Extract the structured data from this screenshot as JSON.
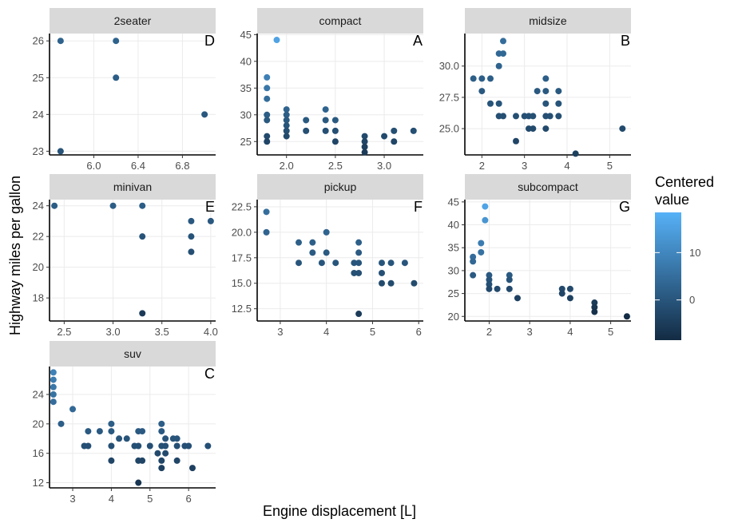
{
  "chart_data": {
    "type": "scatter",
    "xlabel": "Engine displacement [L]",
    "ylabel": "Highway miles per gallon",
    "legend": {
      "title_lines": [
        "Centered",
        "value"
      ],
      "ticks": [
        10,
        0
      ],
      "range": [
        -8.5,
        18.5
      ],
      "colors": [
        "#132B43",
        "#56B1F7"
      ]
    },
    "panels": [
      {
        "strip": "2seater",
        "label": "D",
        "xlim": [
          5.6,
          7.1
        ],
        "ylim": [
          22.9,
          26.2
        ],
        "xticks": [
          6.0,
          6.4,
          6.8
        ],
        "xtick_labels": [
          "6.0",
          "6.4",
          "6.8"
        ],
        "yticks": [
          23,
          24,
          25,
          26
        ],
        "ytick_labels": [
          "23",
          "24",
          "25",
          "26"
        ],
        "points": [
          [
            5.7,
            26,
            2.5
          ],
          [
            5.7,
            23,
            -0.5
          ],
          [
            6.2,
            26,
            2.5
          ],
          [
            6.2,
            25,
            1.5
          ],
          [
            7.0,
            24,
            0.5
          ]
        ]
      },
      {
        "strip": "compact",
        "label": "A",
        "xlim": [
          1.7,
          3.4
        ],
        "ylim": [
          22.5,
          45.2
        ],
        "xticks": [
          2.0,
          2.5,
          3.0
        ],
        "xtick_labels": [
          "2.0",
          "2.5",
          "3.0"
        ],
        "yticks": [
          25,
          30,
          35,
          40,
          45
        ],
        "ytick_labels": [
          "25",
          "30",
          "35",
          "40",
          "45"
        ],
        "points": [
          [
            1.8,
            37,
            8.7
          ],
          [
            1.8,
            35,
            6.7
          ],
          [
            1.8,
            33,
            4.7
          ],
          [
            1.8,
            30,
            1.7
          ],
          [
            1.8,
            29,
            0.7
          ],
          [
            1.8,
            26,
            -2.3
          ],
          [
            1.8,
            25,
            -3.3
          ],
          [
            1.9,
            44,
            15.7
          ],
          [
            2.0,
            31,
            2.7
          ],
          [
            2.0,
            30,
            1.7
          ],
          [
            2.0,
            29,
            0.7
          ],
          [
            2.0,
            28,
            -0.3
          ],
          [
            2.0,
            27,
            -1.3
          ],
          [
            2.0,
            26,
            -2.3
          ],
          [
            2.2,
            29,
            0.7
          ],
          [
            2.2,
            27,
            -1.3
          ],
          [
            2.4,
            31,
            2.7
          ],
          [
            2.4,
            29,
            0.7
          ],
          [
            2.4,
            27,
            -1.3
          ],
          [
            2.5,
            29,
            0.7
          ],
          [
            2.5,
            27,
            -1.3
          ],
          [
            2.5,
            25,
            -3.3
          ],
          [
            2.8,
            26,
            -2.3
          ],
          [
            2.8,
            25,
            -3.3
          ],
          [
            2.8,
            24,
            -4.3
          ],
          [
            2.8,
            23,
            -5.3
          ],
          [
            3.0,
            26,
            -2.3
          ],
          [
            3.1,
            27,
            -1.3
          ],
          [
            3.1,
            25,
            -3.3
          ],
          [
            3.3,
            27,
            -1.3
          ]
        ]
      },
      {
        "strip": "midsize",
        "label": "B",
        "xlim": [
          1.6,
          5.5
        ],
        "ylim": [
          22.9,
          32.6
        ],
        "xticks": [
          2,
          3,
          4,
          5
        ],
        "xtick_labels": [
          "2",
          "3",
          "4",
          "5"
        ],
        "yticks": [
          25.0,
          27.5,
          30.0
        ],
        "ytick_labels": [
          "25.0",
          "27.5",
          "30.0"
        ],
        "points": [
          [
            1.8,
            29,
            1.7
          ],
          [
            2.0,
            29,
            1.7
          ],
          [
            2.0,
            28,
            0.7
          ],
          [
            2.2,
            29,
            1.7
          ],
          [
            2.2,
            27,
            -0.3
          ],
          [
            2.4,
            31,
            3.7
          ],
          [
            2.4,
            30,
            2.7
          ],
          [
            2.4,
            27,
            -0.3
          ],
          [
            2.4,
            26,
            -1.3
          ],
          [
            2.5,
            32,
            4.7
          ],
          [
            2.5,
            31,
            3.7
          ],
          [
            2.5,
            26,
            -1.3
          ],
          [
            2.8,
            26,
            -1.3
          ],
          [
            2.8,
            24,
            -3.3
          ],
          [
            3.0,
            26,
            -1.3
          ],
          [
            3.1,
            26,
            -1.3
          ],
          [
            3.1,
            25,
            -2.3
          ],
          [
            3.2,
            26,
            -1.3
          ],
          [
            3.2,
            25,
            -2.3
          ],
          [
            3.3,
            28,
            0.7
          ],
          [
            3.5,
            29,
            1.7
          ],
          [
            3.5,
            28,
            0.7
          ],
          [
            3.5,
            27,
            -0.3
          ],
          [
            3.5,
            26,
            -1.3
          ],
          [
            3.5,
            25,
            -2.3
          ],
          [
            3.6,
            26,
            -1.3
          ],
          [
            3.8,
            28,
            0.7
          ],
          [
            3.8,
            27,
            -0.3
          ],
          [
            3.8,
            26,
            -1.3
          ],
          [
            4.2,
            23,
            -4.3
          ],
          [
            5.3,
            25,
            -2.3
          ]
        ]
      },
      {
        "strip": "minivan",
        "label": "E",
        "xlim": [
          2.35,
          4.05
        ],
        "ylim": [
          16.5,
          24.4
        ],
        "xticks": [
          2.5,
          3.0,
          3.5,
          4.0
        ],
        "xtick_labels": [
          "2.5",
          "3.0",
          "3.5",
          "4.0"
        ],
        "yticks": [
          18,
          20,
          22,
          24
        ],
        "ytick_labels": [
          "18",
          "20",
          "22",
          "24"
        ],
        "points": [
          [
            2.4,
            24,
            1.6
          ],
          [
            3.0,
            24,
            1.6
          ],
          [
            3.3,
            24,
            1.6
          ],
          [
            3.3,
            22,
            -0.4
          ],
          [
            3.3,
            17,
            -5.4
          ],
          [
            3.8,
            23,
            0.6
          ],
          [
            3.8,
            22,
            -0.4
          ],
          [
            3.8,
            21,
            -1.4
          ],
          [
            4.0,
            23,
            0.6
          ]
        ]
      },
      {
        "strip": "pickup",
        "label": "F",
        "xlim": [
          2.5,
          6.1
        ],
        "ylim": [
          11.3,
          23.2
        ],
        "xticks": [
          3,
          4,
          5,
          6
        ],
        "xtick_labels": [
          "3",
          "4",
          "5",
          "6"
        ],
        "yticks": [
          12.5,
          15.0,
          17.5,
          20.0,
          22.5
        ],
        "ytick_labels": [
          "12.5",
          "15.0",
          "17.5",
          "20.0",
          "22.5"
        ],
        "points": [
          [
            2.7,
            22,
            5.0
          ],
          [
            2.7,
            20,
            3.0
          ],
          [
            3.4,
            19,
            2.0
          ],
          [
            3.4,
            17,
            0.0
          ],
          [
            3.7,
            19,
            2.0
          ],
          [
            3.7,
            18,
            1.0
          ],
          [
            3.9,
            17,
            0.0
          ],
          [
            4.0,
            20,
            3.0
          ],
          [
            4.0,
            18,
            1.0
          ],
          [
            4.2,
            17,
            0.0
          ],
          [
            4.6,
            17,
            0.0
          ],
          [
            4.6,
            16,
            -1.0
          ],
          [
            4.7,
            19,
            2.0
          ],
          [
            4.7,
            18,
            1.0
          ],
          [
            4.7,
            17,
            0.0
          ],
          [
            4.7,
            16,
            -1.0
          ],
          [
            4.7,
            12,
            -5.0
          ],
          [
            5.2,
            17,
            0.0
          ],
          [
            5.2,
            16,
            -1.0
          ],
          [
            5.2,
            15,
            -2.0
          ],
          [
            5.4,
            17,
            0.0
          ],
          [
            5.4,
            15,
            -2.0
          ],
          [
            5.7,
            17,
            0.0
          ],
          [
            5.9,
            15,
            -2.0
          ]
        ]
      },
      {
        "strip": "subcompact",
        "label": "G",
        "xlim": [
          1.4,
          5.5
        ],
        "ylim": [
          19.0,
          45.5
        ],
        "xticks": [
          2,
          3,
          4,
          5
        ],
        "xtick_labels": [
          "2",
          "3",
          "4",
          "5"
        ],
        "yticks": [
          20,
          25,
          30,
          35,
          40,
          45
        ],
        "ytick_labels": [
          "20",
          "25",
          "30",
          "35",
          "40",
          "45"
        ],
        "points": [
          [
            1.6,
            33,
            4.8
          ],
          [
            1.6,
            32,
            3.8
          ],
          [
            1.6,
            29,
            0.8
          ],
          [
            1.8,
            36,
            7.8
          ],
          [
            1.8,
            34,
            5.8
          ],
          [
            1.9,
            44,
            15.8
          ],
          [
            1.9,
            41,
            12.8
          ],
          [
            2.0,
            29,
            0.8
          ],
          [
            2.0,
            28,
            -0.2
          ],
          [
            2.0,
            27,
            -1.2
          ],
          [
            2.0,
            26,
            -2.2
          ],
          [
            2.2,
            26,
            -2.2
          ],
          [
            2.5,
            29,
            0.8
          ],
          [
            2.5,
            28,
            -0.2
          ],
          [
            2.5,
            26,
            -2.2
          ],
          [
            2.7,
            24,
            -4.2
          ],
          [
            3.8,
            26,
            -2.2
          ],
          [
            3.8,
            25,
            -3.2
          ],
          [
            4.0,
            26,
            -2.2
          ],
          [
            4.0,
            24,
            -4.2
          ],
          [
            4.6,
            23,
            -5.2
          ],
          [
            4.6,
            22,
            -6.2
          ],
          [
            4.6,
            21,
            -7.2
          ],
          [
            5.4,
            20,
            -8.2
          ]
        ]
      },
      {
        "strip": "suv",
        "label": "C",
        "xlim": [
          2.4,
          6.7
        ],
        "ylim": [
          11.3,
          27.8
        ],
        "xticks": [
          3,
          4,
          5,
          6
        ],
        "xtick_labels": [
          "3",
          "4",
          "5",
          "6"
        ],
        "yticks": [
          12,
          16,
          20,
          24
        ],
        "ytick_labels": [
          "12",
          "16",
          "20",
          "24"
        ],
        "points": [
          [
            2.5,
            27,
            8.8
          ],
          [
            2.5,
            26,
            7.8
          ],
          [
            2.5,
            25,
            6.8
          ],
          [
            2.5,
            24,
            5.8
          ],
          [
            2.5,
            23,
            4.8
          ],
          [
            2.7,
            20,
            1.8
          ],
          [
            3.0,
            22,
            3.8
          ],
          [
            3.3,
            17,
            -1.2
          ],
          [
            3.4,
            19,
            0.8
          ],
          [
            3.4,
            17,
            -1.2
          ],
          [
            3.7,
            19,
            0.8
          ],
          [
            4.0,
            20,
            1.8
          ],
          [
            4.0,
            19,
            0.8
          ],
          [
            4.0,
            17,
            -1.2
          ],
          [
            4.0,
            15,
            -3.2
          ],
          [
            4.2,
            18,
            -0.2
          ],
          [
            4.4,
            18,
            -0.2
          ],
          [
            4.6,
            17,
            -1.2
          ],
          [
            4.7,
            19,
            0.8
          ],
          [
            4.7,
            17,
            -1.2
          ],
          [
            4.7,
            15,
            -3.2
          ],
          [
            4.7,
            12,
            -6.2
          ],
          [
            4.8,
            19,
            0.8
          ],
          [
            4.8,
            15,
            -3.2
          ],
          [
            5.0,
            17,
            -1.2
          ],
          [
            5.2,
            16,
            -2.2
          ],
          [
            5.3,
            20,
            1.8
          ],
          [
            5.3,
            19,
            0.8
          ],
          [
            5.3,
            17,
            -1.2
          ],
          [
            5.3,
            15,
            -3.2
          ],
          [
            5.3,
            14,
            -4.2
          ],
          [
            5.4,
            18,
            -0.2
          ],
          [
            5.4,
            17,
            -1.2
          ],
          [
            5.4,
            16,
            -2.2
          ],
          [
            5.6,
            18,
            -0.2
          ],
          [
            5.7,
            18,
            -0.2
          ],
          [
            5.7,
            17,
            -1.2
          ],
          [
            5.7,
            15,
            -3.2
          ],
          [
            5.9,
            17,
            -1.2
          ],
          [
            6.0,
            17,
            -1.2
          ],
          [
            6.1,
            14,
            -4.2
          ],
          [
            6.5,
            17,
            -1.2
          ]
        ]
      }
    ]
  }
}
